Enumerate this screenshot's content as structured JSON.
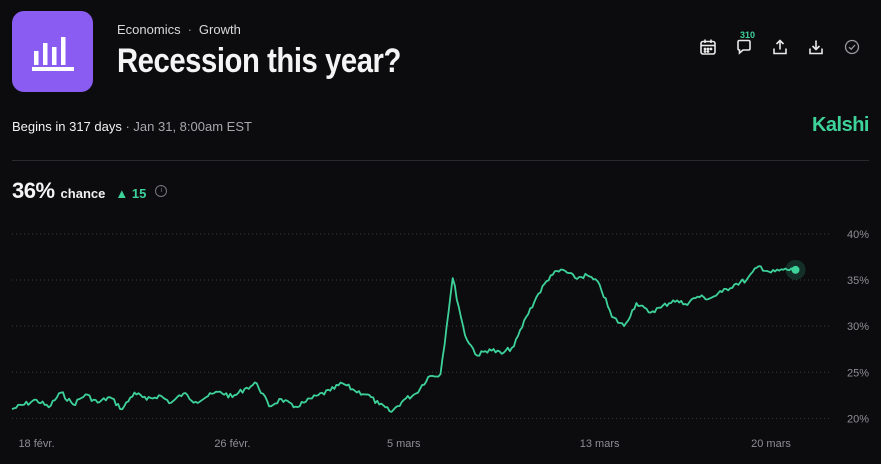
{
  "header": {
    "category": "Economics",
    "subcategory": "Growth",
    "title": "Recession this year?",
    "comment_count": "310",
    "icons": [
      "calendar-icon",
      "comment-icon",
      "share-icon",
      "download-icon",
      "check-circle-icon"
    ]
  },
  "info": {
    "begins": "Begins in 317 days",
    "date": "Jan 31, 8:00am EST",
    "brand": "Kalshi"
  },
  "summary": {
    "chance": "36%",
    "chance_label": "chance",
    "delta": "15"
  },
  "colors": {
    "accent": "#3ed29b",
    "logo_bg": "#8a5cf2",
    "background": "#0c0c0e"
  },
  "chart_data": {
    "type": "line",
    "title": "",
    "xlabel": "",
    "ylabel": "",
    "y_ticks": [
      40,
      35,
      30,
      25,
      20
    ],
    "y_tick_labels": [
      "40%",
      "35%",
      "30%",
      "25%",
      "20%"
    ],
    "ylim": [
      19.5,
      41.5
    ],
    "xlim": [
      "2025-02-17",
      "2025-03-22"
    ],
    "x_ticks": [
      "2025-02-18",
      "2025-02-26",
      "2025-03-05",
      "2025-03-13",
      "2025-03-20"
    ],
    "x_tick_labels": [
      "18 févr.",
      "26 févr.",
      "5 mars",
      "13 mars",
      "20 mars"
    ],
    "grid": "horizontal dotted",
    "series": [
      {
        "name": "",
        "x": [
          "2025-02-17",
          "2025-02-18",
          "2025-02-18",
          "2025-02-19",
          "2025-02-19",
          "2025-02-20",
          "2025-02-20",
          "2025-02-21",
          "2025-02-21",
          "2025-02-22",
          "2025-02-22",
          "2025-02-23",
          "2025-02-23",
          "2025-02-24",
          "2025-02-24",
          "2025-02-25",
          "2025-02-25",
          "2025-02-26",
          "2025-02-26",
          "2025-02-27",
          "2025-02-27",
          "2025-02-28",
          "2025-02-28",
          "2025-03-01",
          "2025-03-01",
          "2025-03-02",
          "2025-03-02",
          "2025-03-03",
          "2025-03-03",
          "2025-03-04",
          "2025-03-04",
          "2025-03-05",
          "2025-03-05",
          "2025-03-06",
          "2025-03-06",
          "2025-03-07",
          "2025-03-07",
          "2025-03-08",
          "2025-03-08",
          "2025-03-09",
          "2025-03-09",
          "2025-03-10",
          "2025-03-10",
          "2025-03-11",
          "2025-03-11",
          "2025-03-12",
          "2025-03-12",
          "2025-03-13",
          "2025-03-13",
          "2025-03-14",
          "2025-03-14",
          "2025-03-15",
          "2025-03-15",
          "2025-03-16",
          "2025-03-16",
          "2025-03-17",
          "2025-03-17",
          "2025-03-18",
          "2025-03-18",
          "2025-03-19",
          "2025-03-19",
          "2025-03-20",
          "2025-03-20",
          "2025-03-21"
        ],
        "values": [
          21.0,
          22.0,
          21.2,
          22.8,
          21.5,
          22.6,
          21.7,
          22.3,
          21.0,
          22.8,
          22.0,
          22.5,
          21.7,
          22.7,
          21.8,
          22.4,
          22.9,
          22.3,
          23.2,
          23.8,
          21.3,
          22.1,
          21.2,
          21.8,
          22.5,
          23.0,
          23.8,
          23.0,
          22.6,
          21.5,
          20.7,
          22.0,
          22.7,
          24.5,
          24.8,
          35.2,
          29.0,
          26.8,
          27.5,
          27.0,
          27.8,
          31.0,
          33.5,
          35.5,
          36.1,
          35.2,
          35.5,
          34.5,
          31.0,
          30.0,
          32.5,
          31.5,
          32.0,
          32.8,
          32.4,
          33.2,
          33.0,
          33.7,
          34.5,
          35.0,
          36.5,
          35.8,
          36.1,
          36.1
        ]
      }
    ]
  }
}
